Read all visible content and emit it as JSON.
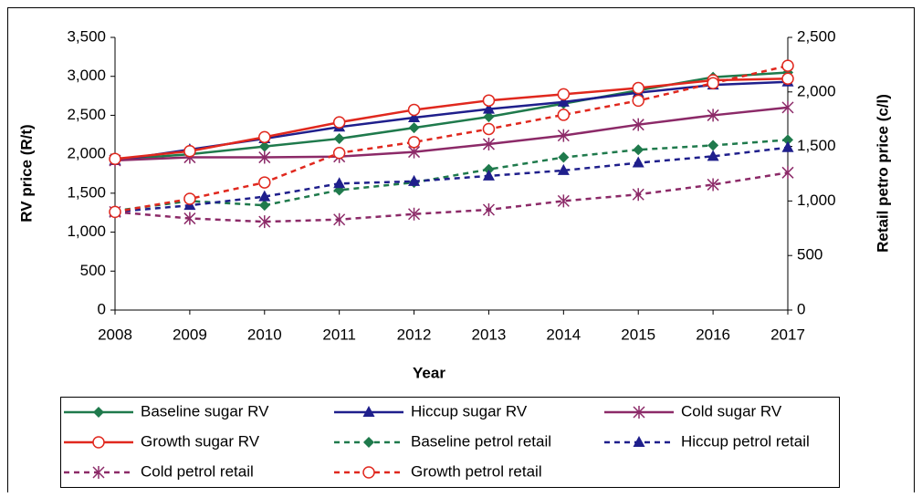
{
  "chart_data": {
    "type": "line",
    "x_label": "Year",
    "y_label": "RV price (R/t)",
    "y2_label": "Retail petro price (c/l)",
    "categories": [
      "2008",
      "2009",
      "2010",
      "2011",
      "2012",
      "2013",
      "2014",
      "2015",
      "2016",
      "2017"
    ],
    "ylim": [
      0,
      3500
    ],
    "yticks": [
      0,
      500,
      {
        "value": 1000,
        "label": "1,000"
      },
      {
        "value": 1500,
        "label": "1,500"
      },
      {
        "value": 2000,
        "label": "2,000"
      },
      {
        "value": 2500,
        "label": "2,500"
      },
      {
        "value": 3000,
        "label": "3,000"
      },
      {
        "value": 3500,
        "label": "3,500"
      }
    ],
    "y2lim": [
      0,
      2500
    ],
    "y2ticks": [
      0,
      500,
      {
        "value": 1000,
        "label": "1,000"
      },
      {
        "value": 1500,
        "label": "1,500"
      },
      {
        "value": 2000,
        "label": "2,000"
      },
      {
        "value": 2500,
        "label": "2,500"
      }
    ],
    "series": [
      {
        "name": "Baseline sugar RV",
        "color": "#1f7a4c",
        "marker": "diamond",
        "dashed": false,
        "values": [
          1930,
          2000,
          2100,
          2200,
          2340,
          2480,
          2650,
          2820,
          2990,
          3050
        ]
      },
      {
        "name": "Hiccup sugar RV",
        "color": "#1f1f8c",
        "marker": "triangle",
        "dashed": false,
        "values": [
          1920,
          2060,
          2200,
          2350,
          2470,
          2580,
          2670,
          2790,
          2890,
          2930
        ]
      },
      {
        "name": "Cold sugar RV",
        "color": "#8c2a68",
        "marker": "star",
        "dashed": false,
        "values": [
          1920,
          1960,
          1960,
          1970,
          2030,
          2130,
          2240,
          2380,
          2500,
          2600
        ]
      },
      {
        "name": "Growth sugar RV",
        "color": "#e0281e",
        "marker": "circle",
        "dashed": false,
        "values": [
          1940,
          2040,
          2220,
          2410,
          2570,
          2690,
          2770,
          2850,
          2950,
          2970
        ]
      },
      {
        "name": "Baseline petrol retail",
        "color": "#1f7a4c",
        "marker": "diamond",
        "dashed": true,
        "axis": "y2",
        "values": [
          910,
          1000,
          960,
          1100,
          1170,
          1290,
          1400,
          1470,
          1510,
          1560
        ]
      },
      {
        "name": "Hiccup petrol retail",
        "color": "#1f1f8c",
        "marker": "triangle",
        "dashed": true,
        "axis": "y2",
        "values": [
          900,
          960,
          1040,
          1160,
          1180,
          1230,
          1280,
          1350,
          1410,
          1490
        ]
      },
      {
        "name": "Cold petrol retail",
        "color": "#8c2a68",
        "marker": "star",
        "dashed": true,
        "axis": "y2",
        "values": [
          900,
          840,
          810,
          830,
          880,
          920,
          1000,
          1060,
          1150,
          1260
        ]
      },
      {
        "name": "Growth petrol retail",
        "color": "#e0281e",
        "marker": "circle",
        "dashed": true,
        "axis": "y2",
        "values": [
          900,
          1020,
          1170,
          1440,
          1540,
          1660,
          1790,
          1920,
          2080,
          2240
        ]
      }
    ]
  }
}
